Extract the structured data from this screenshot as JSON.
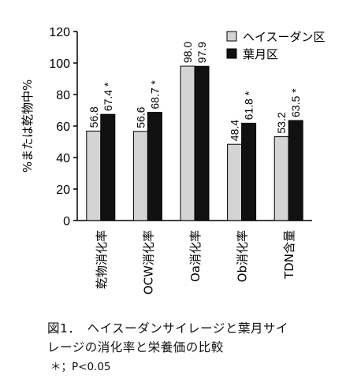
{
  "chart_data": {
    "type": "bar",
    "ylabel": "%または乾物中%",
    "ylim": [
      0,
      120
    ],
    "yticks": [
      0,
      20,
      40,
      60,
      80,
      100,
      120
    ],
    "categories": [
      "乾物消化率",
      "OCW消化率",
      "Oa消化率",
      "Ob消化率",
      "TDN含量"
    ],
    "series": [
      {
        "name": "ヘイスーダン区",
        "values": [
          56.8,
          56.6,
          98.0,
          48.4,
          53.2
        ],
        "labels": [
          "56.8",
          "56.6",
          "98.0",
          "48.4",
          "53.2"
        ],
        "color": "#d4d4d4"
      },
      {
        "name": "葉月区",
        "values": [
          67.4,
          68.7,
          97.9,
          61.8,
          63.5
        ],
        "labels": [
          "67.4 *",
          "68.7 *",
          "97.9",
          "61.8 *",
          "63.5 *"
        ],
        "color": "#111111"
      }
    ],
    "legend_position": "top-right"
  },
  "caption": {
    "line1": "図1．　ヘイスーダンサイレージと葉月サイ",
    "line2": "レージの消化率と栄養価の比較",
    "note": "＊；P<0.05"
  }
}
